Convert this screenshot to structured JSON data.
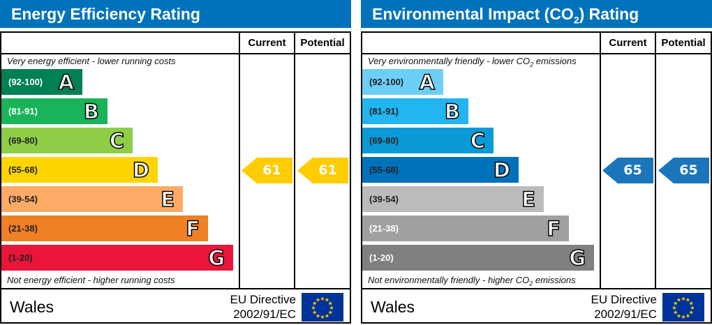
{
  "panels": [
    {
      "title_pre": "Energy Efficiency Rating",
      "title_sub": "",
      "title_post": "",
      "col_current": "Current",
      "col_potential": "Potential",
      "top_note_pre": "Very energy efficient - lower running costs",
      "top_note_sub": "",
      "top_note_post": "",
      "bottom_note_pre": "Not energy efficient - higher running costs",
      "bottom_note_sub": "",
      "bottom_note_post": "",
      "bands": [
        {
          "letter": "A",
          "range": "(92-100)",
          "color": "#008054",
          "text_color": "#ffffff"
        },
        {
          "letter": "B",
          "range": "(81-91)",
          "color": "#19b459",
          "text_color": "#ffffff"
        },
        {
          "letter": "C",
          "range": "(69-80)",
          "color": "#8dce46",
          "text_color": "#222222"
        },
        {
          "letter": "D",
          "range": "(55-68)",
          "color": "#ffd500",
          "text_color": "#222222"
        },
        {
          "letter": "E",
          "range": "(39-54)",
          "color": "#fcaa65",
          "text_color": "#222222"
        },
        {
          "letter": "F",
          "range": "(21-38)",
          "color": "#ef8023",
          "text_color": "#222222"
        },
        {
          "letter": "G",
          "range": "(1-20)",
          "color": "#e9153b",
          "text_color": "#222222"
        }
      ],
      "current": {
        "value": "61",
        "band": "D",
        "color": "#ffcc00"
      },
      "potential": {
        "value": "61",
        "band": "D",
        "color": "#ffcc00"
      },
      "region": "Wales",
      "directive_1": "EU Directive",
      "directive_2": "2002/91/EC"
    },
    {
      "title_pre": "Environmental Impact (CO",
      "title_sub": "2",
      "title_post": ") Rating",
      "col_current": "Current",
      "col_potential": "Potential",
      "top_note_pre": "Very environmentally friendly - lower CO",
      "top_note_sub": "2",
      "top_note_post": " emissions",
      "bottom_note_pre": "Not environmentally friendly - higher CO",
      "bottom_note_sub": "2",
      "bottom_note_post": " emissions",
      "bands": [
        {
          "letter": "A",
          "range": "(92-100)",
          "color": "#6dcff6",
          "text_color": "#222222"
        },
        {
          "letter": "B",
          "range": "(81-91)",
          "color": "#22b5f0",
          "text_color": "#222222"
        },
        {
          "letter": "C",
          "range": "(69-80)",
          "color": "#0a9ad8",
          "text_color": "#222222"
        },
        {
          "letter": "D",
          "range": "(55-68)",
          "color": "#0072bc",
          "text_color": "#222222"
        },
        {
          "letter": "E",
          "range": "(39-54)",
          "color": "#bbbbbb",
          "text_color": "#222222"
        },
        {
          "letter": "F",
          "range": "(21-38)",
          "color": "#a0a0a0",
          "text_color": "#ffffff"
        },
        {
          "letter": "G",
          "range": "(1-20)",
          "color": "#808080",
          "text_color": "#ffffff"
        }
      ],
      "current": {
        "value": "65",
        "band": "D",
        "color": "#1b75bb"
      },
      "potential": {
        "value": "65",
        "band": "D",
        "color": "#1b75bb"
      },
      "region": "Wales",
      "directive_1": "EU Directive",
      "directive_2": "2002/91/EC"
    }
  ]
}
